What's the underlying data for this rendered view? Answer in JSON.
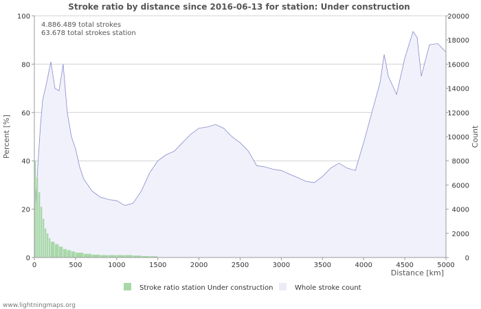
{
  "chart_data": {
    "type": "bar",
    "title": "Stroke ratio by distance since 2016-06-13 for station: Under construction",
    "xlabel": "Distance   [km]",
    "ylabel_left": "Percent   [%]",
    "ylabel_right": "Count",
    "x_ticks": [
      0,
      500,
      1000,
      1500,
      2000,
      2500,
      3000,
      3500,
      4000,
      4500,
      5000
    ],
    "y_left_ticks": [
      0,
      20,
      40,
      60,
      80,
      100
    ],
    "y_right_ticks": [
      0,
      2000,
      4000,
      6000,
      8000,
      10000,
      12000,
      14000,
      16000,
      18000,
      20000
    ],
    "xlim": [
      0,
      5000
    ],
    "ylim_left": [
      0,
      100
    ],
    "ylim_right": [
      0,
      20000
    ],
    "annotations": [
      "4.886.489 total strokes",
      "63.678 total strokes station"
    ],
    "legend_position": "bottom",
    "series": [
      {
        "name": "Stroke ratio station Under construction",
        "kind": "bar",
        "axis": "left",
        "color": "#a8d8a8",
        "x": [
          25,
          50,
          75,
          100,
          125,
          150,
          175,
          200,
          250,
          300,
          350,
          400,
          450,
          500,
          600,
          700,
          800,
          900,
          1000,
          1100,
          1200,
          1300,
          1400,
          1500
        ],
        "values": [
          40,
          33,
          27,
          21,
          16,
          12,
          10,
          8,
          6.5,
          5.5,
          4.5,
          3.5,
          3,
          2.5,
          2,
          1.5,
          1.2,
          1,
          1,
          1,
          1,
          0.8,
          0.6,
          0.5
        ]
      },
      {
        "name": "Whole stroke count",
        "kind": "area",
        "axis": "right",
        "color": "#8888cc",
        "fill": "#f1f1fb",
        "x": [
          0,
          25,
          50,
          75,
          100,
          150,
          200,
          250,
          300,
          350,
          400,
          450,
          500,
          550,
          600,
          700,
          800,
          900,
          1000,
          1100,
          1200,
          1300,
          1400,
          1500,
          1600,
          1700,
          1800,
          1900,
          2000,
          2100,
          2200,
          2300,
          2400,
          2500,
          2600,
          2700,
          2800,
          2900,
          3000,
          3100,
          3200,
          3300,
          3400,
          3500,
          3600,
          3700,
          3800,
          3900,
          4000,
          4100,
          4200,
          4250,
          4300,
          4400,
          4500,
          4600,
          4650,
          4700,
          4800,
          4900,
          5000
        ],
        "values": [
          2000,
          5500,
          8500,
          11000,
          13000,
          14500,
          16200,
          14000,
          13800,
          16000,
          12000,
          10000,
          9000,
          7500,
          6500,
          5500,
          5000,
          4800,
          4700,
          4300,
          4500,
          5500,
          7000,
          8000,
          8500,
          8800,
          9500,
          10200,
          10700,
          10800,
          11000,
          10700,
          10000,
          9500,
          8800,
          7600,
          7500,
          7300,
          7200,
          6900,
          6600,
          6300,
          6200,
          6700,
          7400,
          7800,
          7400,
          7200,
          9500,
          12000,
          14500,
          16800,
          15000,
          13500,
          16500,
          18700,
          18200,
          15000,
          17600,
          17700,
          17000
        ]
      }
    ]
  },
  "credit": "www.lightningmaps.org"
}
